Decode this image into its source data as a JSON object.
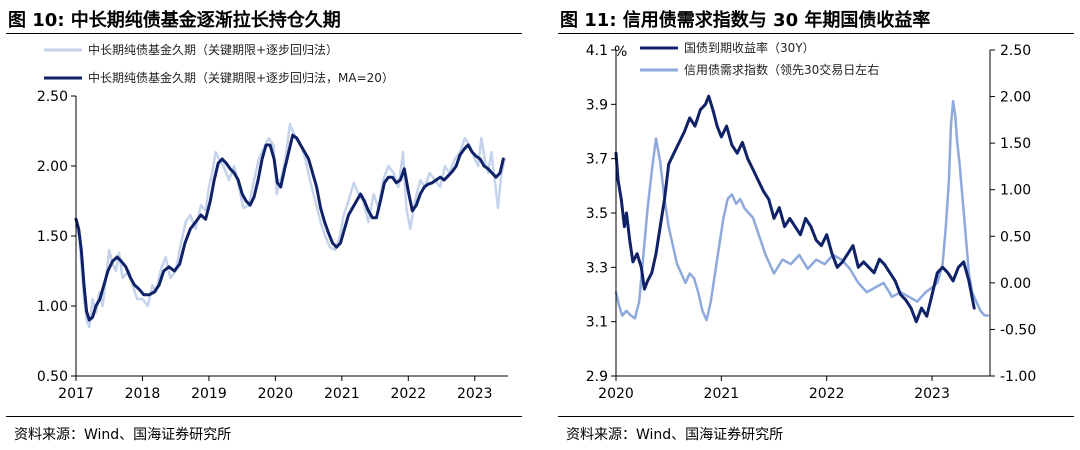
{
  "left": {
    "title": "图 10:  中长期纯债基金逐渐拉长持仓久期",
    "source": "资料来源：Wind、国海证券研究所",
    "legend": [
      "中长期纯债基金久期（关键期限+逐步回归法）",
      "中长期纯债基金久期（关键期限+逐步回归法，MA=20）"
    ],
    "colors": {
      "raw": "#c5d3ec",
      "ma": "#0f2167"
    },
    "chart_data": {
      "type": "line",
      "title": "中长期纯债基金逐渐拉长持仓久期",
      "xlim": [
        2017.0,
        2023.5
      ],
      "ylim": [
        0.5,
        2.5
      ],
      "x_ticks": [
        "2017",
        "2018",
        "2019",
        "2020",
        "2021",
        "2022",
        "2023"
      ],
      "y_ticks": [
        "0.50",
        "1.00",
        "1.50",
        "2.00",
        "2.50"
      ],
      "legend_position": "top-left",
      "series": [
        {
          "name": "中长期纯债基金久期（关键期限+逐步回归法）",
          "x": [
            2017.0,
            2017.05,
            2017.08,
            2017.12,
            2017.16,
            2017.2,
            2017.25,
            2017.3,
            2017.35,
            2017.4,
            2017.45,
            2017.5,
            2017.55,
            2017.6,
            2017.65,
            2017.7,
            2017.8,
            2017.85,
            2017.92,
            2018.0,
            2018.08,
            2018.15,
            2018.2,
            2018.27,
            2018.35,
            2018.42,
            2018.5,
            2018.58,
            2018.65,
            2018.72,
            2018.8,
            2018.88,
            2018.95,
            2019.0,
            2019.05,
            2019.1,
            2019.15,
            2019.22,
            2019.3,
            2019.38,
            2019.45,
            2019.52,
            2019.6,
            2019.68,
            2019.75,
            2019.82,
            2019.9,
            2019.97,
            2020.02,
            2020.08,
            2020.15,
            2020.22,
            2020.3,
            2020.38,
            2020.45,
            2020.52,
            2020.6,
            2020.68,
            2020.75,
            2020.82,
            2020.9,
            2020.97,
            2021.03,
            2021.1,
            2021.18,
            2021.25,
            2021.32,
            2021.4,
            2021.48,
            2021.55,
            2021.62,
            2021.7,
            2021.78,
            2021.85,
            2021.92,
            2021.97,
            2022.03,
            2022.1,
            2022.18,
            2022.25,
            2022.32,
            2022.4,
            2022.48,
            2022.55,
            2022.62,
            2022.7,
            2022.78,
            2022.85,
            2022.92,
            2023.0,
            2023.05,
            2023.1,
            2023.15,
            2023.2,
            2023.25,
            2023.3,
            2023.35,
            2023.4,
            2023.45
          ],
          "y": [
            1.58,
            1.5,
            1.3,
            1.05,
            0.9,
            0.85,
            1.05,
            0.95,
            1.1,
            1.0,
            1.2,
            1.4,
            1.3,
            1.25,
            1.38,
            1.2,
            1.25,
            1.15,
            1.05,
            1.05,
            1.0,
            1.15,
            1.1,
            1.25,
            1.35,
            1.2,
            1.25,
            1.45,
            1.6,
            1.65,
            1.55,
            1.72,
            1.68,
            1.85,
            1.95,
            2.1,
            2.05,
            2.0,
            1.9,
            2.0,
            1.85,
            1.7,
            1.72,
            1.9,
            2.05,
            2.12,
            2.2,
            2.15,
            1.8,
            1.9,
            2.05,
            2.3,
            2.2,
            2.15,
            2.05,
            1.9,
            1.75,
            1.6,
            1.5,
            1.42,
            1.4,
            1.5,
            1.65,
            1.75,
            1.88,
            1.8,
            1.75,
            1.6,
            1.8,
            1.7,
            1.9,
            2.0,
            1.95,
            1.85,
            2.1,
            1.7,
            1.55,
            1.75,
            1.9,
            1.85,
            1.95,
            1.9,
            1.85,
            2.0,
            1.95,
            2.05,
            2.1,
            2.2,
            2.15,
            2.05,
            2.0,
            2.2,
            2.05,
            1.95,
            2.1,
            1.9,
            1.7,
            1.95,
            2.05
          ]
        },
        {
          "name": "中长期纯债基金久期（关键期限+逐步回归法，MA=20）",
          "x": [
            2017.0,
            2017.04,
            2017.08,
            2017.12,
            2017.16,
            2017.2,
            2017.25,
            2017.3,
            2017.36,
            2017.42,
            2017.48,
            2017.55,
            2017.62,
            2017.68,
            2017.75,
            2017.82,
            2017.88,
            2017.95,
            2018.02,
            2018.1,
            2018.18,
            2018.25,
            2018.32,
            2018.4,
            2018.48,
            2018.56,
            2018.64,
            2018.72,
            2018.8,
            2018.88,
            2018.95,
            2019.02,
            2019.08,
            2019.14,
            2019.2,
            2019.26,
            2019.32,
            2019.38,
            2019.44,
            2019.5,
            2019.56,
            2019.62,
            2019.68,
            2019.74,
            2019.8,
            2019.86,
            2019.92,
            2019.98,
            2020.03,
            2020.08,
            2020.14,
            2020.2,
            2020.26,
            2020.32,
            2020.38,
            2020.44,
            2020.5,
            2020.56,
            2020.62,
            2020.68,
            2020.74,
            2020.8,
            2020.86,
            2020.92,
            2020.98,
            2021.04,
            2021.1,
            2021.16,
            2021.22,
            2021.28,
            2021.34,
            2021.4,
            2021.46,
            2021.52,
            2021.58,
            2021.64,
            2021.7,
            2021.76,
            2021.82,
            2021.88,
            2021.94,
            2022.0,
            2022.06,
            2022.12,
            2022.18,
            2022.24,
            2022.3,
            2022.36,
            2022.42,
            2022.48,
            2022.54,
            2022.6,
            2022.66,
            2022.72,
            2022.78,
            2022.84,
            2022.9,
            2022.96,
            2023.02,
            2023.08,
            2023.14,
            2023.2,
            2023.26,
            2023.32,
            2023.38,
            2023.43
          ],
          "y": [
            1.62,
            1.55,
            1.4,
            1.15,
            0.96,
            0.9,
            0.92,
            1.0,
            1.05,
            1.15,
            1.25,
            1.32,
            1.35,
            1.32,
            1.28,
            1.2,
            1.15,
            1.12,
            1.08,
            1.08,
            1.1,
            1.15,
            1.25,
            1.28,
            1.25,
            1.3,
            1.45,
            1.55,
            1.6,
            1.65,
            1.62,
            1.75,
            1.9,
            2.02,
            2.05,
            2.02,
            1.98,
            1.95,
            1.9,
            1.8,
            1.75,
            1.72,
            1.78,
            1.9,
            2.05,
            2.15,
            2.15,
            2.05,
            1.88,
            1.85,
            1.98,
            2.1,
            2.22,
            2.2,
            2.15,
            2.1,
            2.05,
            1.95,
            1.85,
            1.7,
            1.6,
            1.52,
            1.45,
            1.42,
            1.45,
            1.55,
            1.65,
            1.7,
            1.75,
            1.8,
            1.75,
            1.68,
            1.63,
            1.63,
            1.75,
            1.88,
            1.92,
            1.92,
            1.88,
            1.9,
            1.98,
            1.82,
            1.68,
            1.72,
            1.8,
            1.85,
            1.87,
            1.88,
            1.9,
            1.92,
            1.9,
            1.93,
            1.96,
            2.0,
            2.08,
            2.12,
            2.15,
            2.1,
            2.07,
            2.05,
            2.0,
            1.98,
            1.95,
            1.92,
            1.95,
            2.05
          ]
        }
      ]
    }
  },
  "right": {
    "title": "图 11:  信用债需求指数与 30 年期国债收益率",
    "source": "资料来源：Wind、国海证券研究所",
    "legend": [
      "国债到期收益率（30Y）",
      "信用债需求指数（领先30交易日左右"
    ],
    "unit_label": "%",
    "colors": {
      "yield": "#0f2167",
      "index": "#8ea9db"
    },
    "chart_data": {
      "type": "line",
      "title": "信用债需求指数与 30 年期国债收益率",
      "xlim": [
        2020.0,
        2023.55
      ],
      "ylim_left": [
        2.9,
        4.1
      ],
      "ylim_right": [
        -1.0,
        2.5
      ],
      "x_ticks": [
        "2020",
        "2021",
        "2022",
        "2023"
      ],
      "y_ticks_left": [
        "2.9",
        "3.1",
        "3.3",
        "3.5",
        "3.7",
        "3.9",
        "4.1"
      ],
      "y_ticks_right": [
        "-1.00",
        "-0.50",
        "0.00",
        "0.50",
        "1.00",
        "1.50",
        "2.00",
        "2.50"
      ],
      "legend_position": "top-left",
      "series": [
        {
          "name": "国债到期收益率（30Y）",
          "axis": "left",
          "x": [
            2020.0,
            2020.02,
            2020.05,
            2020.08,
            2020.1,
            2020.13,
            2020.16,
            2020.2,
            2020.24,
            2020.27,
            2020.3,
            2020.34,
            2020.38,
            2020.42,
            2020.46,
            2020.5,
            2020.55,
            2020.6,
            2020.65,
            2020.7,
            2020.75,
            2020.8,
            2020.85,
            2020.88,
            2020.92,
            2020.96,
            2021.0,
            2021.05,
            2021.1,
            2021.15,
            2021.2,
            2021.25,
            2021.3,
            2021.35,
            2021.4,
            2021.45,
            2021.5,
            2021.55,
            2021.6,
            2021.65,
            2021.7,
            2021.75,
            2021.8,
            2021.85,
            2021.9,
            2021.95,
            2022.0,
            2022.05,
            2022.1,
            2022.15,
            2022.2,
            2022.25,
            2022.3,
            2022.35,
            2022.4,
            2022.45,
            2022.5,
            2022.55,
            2022.6,
            2022.65,
            2022.7,
            2022.75,
            2022.8,
            2022.85,
            2022.9,
            2022.95,
            2023.0,
            2023.05,
            2023.1,
            2023.15,
            2023.2,
            2023.25,
            2023.3,
            2023.35,
            2023.4
          ],
          "y": [
            3.72,
            3.62,
            3.55,
            3.45,
            3.5,
            3.4,
            3.32,
            3.35,
            3.3,
            3.22,
            3.25,
            3.28,
            3.35,
            3.45,
            3.55,
            3.68,
            3.72,
            3.76,
            3.8,
            3.85,
            3.82,
            3.88,
            3.9,
            3.93,
            3.88,
            3.82,
            3.78,
            3.82,
            3.75,
            3.72,
            3.76,
            3.7,
            3.66,
            3.62,
            3.58,
            3.55,
            3.48,
            3.52,
            3.45,
            3.48,
            3.45,
            3.42,
            3.48,
            3.45,
            3.4,
            3.38,
            3.42,
            3.35,
            3.3,
            3.32,
            3.35,
            3.38,
            3.3,
            3.32,
            3.3,
            3.28,
            3.33,
            3.31,
            3.28,
            3.25,
            3.2,
            3.18,
            3.15,
            3.1,
            3.15,
            3.12,
            3.2,
            3.28,
            3.3,
            3.28,
            3.25,
            3.3,
            3.32,
            3.25,
            3.15
          ]
        },
        {
          "name": "信用债需求指数（领先30交易日左右",
          "axis": "right",
          "x": [
            2020.0,
            2020.03,
            2020.06,
            2020.1,
            2020.14,
            2020.18,
            2020.22,
            2020.26,
            2020.3,
            2020.34,
            2020.38,
            2020.42,
            2020.46,
            2020.5,
            2020.54,
            2020.58,
            2020.62,
            2020.66,
            2020.7,
            2020.74,
            2020.78,
            2020.82,
            2020.86,
            2020.9,
            2020.94,
            2020.98,
            2021.02,
            2021.06,
            2021.1,
            2021.14,
            2021.18,
            2021.22,
            2021.26,
            2021.3,
            2021.36,
            2021.42,
            2021.5,
            2021.58,
            2021.66,
            2021.74,
            2021.82,
            2021.9,
            2021.98,
            2022.06,
            2022.14,
            2022.22,
            2022.3,
            2022.38,
            2022.46,
            2022.54,
            2022.62,
            2022.7,
            2022.78,
            2022.86,
            2022.94,
            2023.0,
            2023.05,
            2023.1,
            2023.13,
            2023.16,
            2023.18,
            2023.2,
            2023.22,
            2023.24,
            2023.26,
            2023.29,
            2023.32,
            2023.35,
            2023.38,
            2023.42,
            2023.46,
            2023.5,
            2023.53
          ],
          "y": [
            -0.1,
            -0.25,
            -0.35,
            -0.3,
            -0.35,
            -0.38,
            -0.2,
            0.3,
            0.8,
            1.2,
            1.55,
            1.3,
            0.9,
            0.6,
            0.4,
            0.2,
            0.1,
            0.0,
            0.1,
            0.05,
            -0.1,
            -0.3,
            -0.4,
            -0.2,
            0.1,
            0.4,
            0.7,
            0.9,
            0.95,
            0.85,
            0.9,
            0.8,
            0.75,
            0.7,
            0.5,
            0.3,
            0.1,
            0.25,
            0.2,
            0.3,
            0.15,
            0.25,
            0.2,
            0.3,
            0.25,
            0.15,
            0.0,
            -0.1,
            -0.05,
            0.0,
            -0.15,
            -0.1,
            -0.15,
            -0.2,
            -0.1,
            -0.05,
            0.0,
            0.2,
            0.6,
            1.1,
            1.7,
            1.95,
            1.8,
            1.5,
            1.3,
            0.9,
            0.5,
            0.1,
            -0.1,
            -0.2,
            -0.3,
            -0.35,
            -0.35
          ]
        }
      ]
    }
  }
}
